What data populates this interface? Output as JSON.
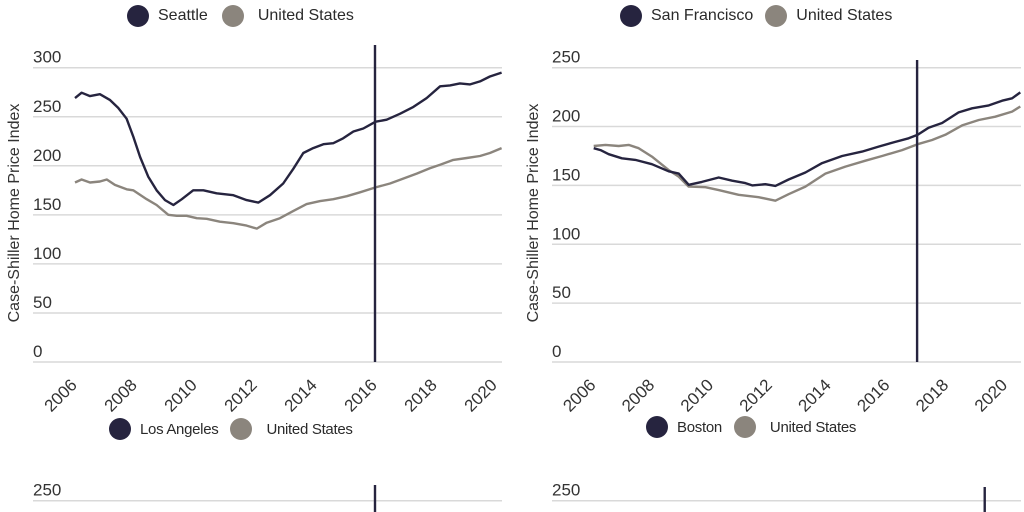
{
  "colors": {
    "city": "#26243f",
    "us": "#8b857d",
    "grid": "#d9d9d9",
    "text": "#333333"
  },
  "legends": [
    {
      "city": "Seattle",
      "us": "United States"
    },
    {
      "city": "San Francisco",
      "us": "United States"
    },
    {
      "city": "Los Angeles",
      "us": "United States"
    },
    {
      "city": "Boston",
      "us": "United States"
    }
  ],
  "chart_data": [
    {
      "type": "line",
      "ylabel": "Case-Shiller Home Price Index",
      "yticks": [
        0,
        50,
        100,
        150,
        200,
        250,
        300
      ],
      "ylim": [
        0,
        300
      ],
      "xticks": [
        "2006",
        "2008",
        "2010",
        "2012",
        "2014",
        "2016",
        "2018",
        "2020"
      ],
      "grid": true,
      "legend": "top",
      "marker_x": 2016.0,
      "series": [
        {
          "name": "Seattle",
          "x": [
            2006.0,
            2006.22,
            2006.5,
            2006.83,
            2007.17,
            2007.44,
            2007.72,
            2007.94,
            2008.17,
            2008.44,
            2008.72,
            2009.0,
            2009.28,
            2009.56,
            2009.94,
            2010.28,
            2010.72,
            2011.28,
            2011.72,
            2012.11,
            2012.5,
            2012.94,
            2013.28,
            2013.61,
            2013.94,
            2014.28,
            2014.61,
            2014.94,
            2015.28,
            2015.61,
            2016.02,
            2016.39,
            2016.83,
            2017.28,
            2017.72,
            2018.17,
            2018.5,
            2018.83,
            2019.17,
            2019.5,
            2019.83,
            2020.22
          ],
          "y": [
            269,
            274.5,
            271,
            273,
            267,
            259,
            248,
            230,
            209,
            189,
            175,
            165,
            160,
            166,
            175,
            175,
            172,
            170,
            165,
            162.5,
            170,
            182,
            197,
            213,
            218,
            222,
            223,
            228,
            235,
            238,
            245,
            247,
            253,
            260,
            269,
            281,
            282,
            284,
            283,
            286,
            291,
            295
          ]
        },
        {
          "name": "United States",
          "x": [
            2006.0,
            2006.22,
            2006.5,
            2006.83,
            2007.06,
            2007.33,
            2007.72,
            2007.94,
            2008.39,
            2008.72,
            2009.11,
            2009.39,
            2009.72,
            2010.06,
            2010.39,
            2010.83,
            2011.28,
            2011.72,
            2012.06,
            2012.39,
            2012.83,
            2013.28,
            2013.72,
            2014.17,
            2014.61,
            2015.06,
            2015.5,
            2016.02,
            2016.5,
            2016.94,
            2017.39,
            2017.83,
            2018.17,
            2018.61,
            2019.06,
            2019.5,
            2019.83,
            2020.22
          ],
          "y": [
            183,
            186,
            183,
            184,
            186,
            180.5,
            176,
            175,
            166,
            160,
            150,
            149,
            149,
            146.6,
            146,
            143,
            141.5,
            139,
            136,
            142,
            146.6,
            154,
            161,
            164,
            166,
            169,
            173,
            178,
            182,
            187,
            192,
            197.5,
            201,
            206,
            208,
            210,
            213,
            218
          ]
        }
      ]
    },
    {
      "type": "line",
      "ylabel": "Case-Shiller Home Price Index",
      "yticks": [
        0,
        50,
        100,
        150,
        200,
        250
      ],
      "ylim": [
        0,
        250
      ],
      "xticks": [
        "2006",
        "2008",
        "2010",
        "2012",
        "2014",
        "2016",
        "2018",
        "2020"
      ],
      "grid": true,
      "legend": "top",
      "marker_x": 2017.0,
      "series": [
        {
          "name": "San Francisco",
          "x": [
            2006.0,
            2006.23,
            2006.51,
            2006.96,
            2007.42,
            2007.98,
            2008.55,
            2008.89,
            2009.23,
            2009.68,
            2010.25,
            2010.71,
            2011.16,
            2011.39,
            2011.84,
            2012.18,
            2012.63,
            2013.2,
            2013.77,
            2014.45,
            2015.13,
            2015.69,
            2016.26,
            2016.71,
            2017.02,
            2017.39,
            2017.85,
            2018.41,
            2018.87,
            2019.44,
            2019.89,
            2020.23,
            2020.51
          ],
          "y": [
            181.6,
            180,
            176.5,
            173,
            171.7,
            168,
            162,
            160,
            150.5,
            153,
            156.7,
            154,
            152,
            150,
            151,
            149.6,
            155,
            161,
            169,
            175,
            178.7,
            183,
            187,
            190,
            193,
            199,
            203,
            212,
            215.5,
            218,
            222,
            224,
            229
          ]
        },
        {
          "name": "United States",
          "x": [
            2006.0,
            2006.4,
            2006.85,
            2007.19,
            2007.53,
            2007.98,
            2008.55,
            2008.89,
            2009.23,
            2009.8,
            2010.25,
            2010.93,
            2011.61,
            2012.18,
            2012.63,
            2013.2,
            2013.88,
            2014.56,
            2015.24,
            2015.81,
            2016.49,
            2017.02,
            2017.51,
            2017.96,
            2018.53,
            2019.1,
            2019.66,
            2020.23,
            2020.51
          ],
          "y": [
            183.5,
            184.4,
            183.5,
            184.4,
            181.6,
            174.5,
            163,
            157.5,
            149,
            148.5,
            146,
            142,
            140,
            137,
            142.5,
            149,
            160,
            166,
            171,
            175,
            180,
            185,
            188.6,
            193,
            201,
            205.6,
            208.4,
            212.7,
            217
          ]
        }
      ]
    },
    {
      "type": "line",
      "yticks": [
        250
      ],
      "grid": true,
      "legend": "top",
      "marker_x": 2016.0,
      "series": [
        {
          "name": "Los Angeles"
        },
        {
          "name": "United States"
        }
      ]
    },
    {
      "type": "line",
      "yticks": [
        250
      ],
      "grid": true,
      "legend": "top",
      "marker_x": 2019.3,
      "series": [
        {
          "name": "Boston"
        },
        {
          "name": "United States"
        }
      ]
    }
  ]
}
